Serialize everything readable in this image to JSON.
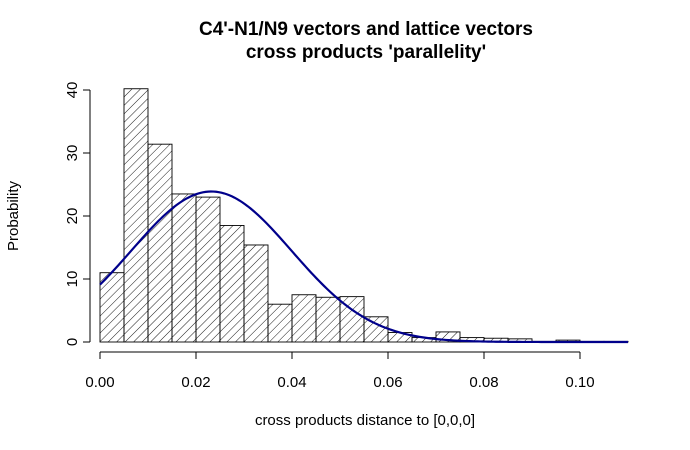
{
  "chart_data": {
    "type": "bar",
    "title_line1": "C4'-N1/N9 vectors and lattice vectors",
    "title_line2": "cross products 'parallelity'",
    "xlabel": "cross products distance to [0,0,0]",
    "ylabel": "Probability",
    "xlim": [
      0,
      0.11
    ],
    "ylim": [
      0,
      40
    ],
    "x_ticks": [
      "0.00",
      "0.02",
      "0.04",
      "0.06",
      "0.08",
      "0.10"
    ],
    "y_ticks": [
      "0",
      "10",
      "20",
      "30",
      "40"
    ],
    "bin_width": 0.005,
    "bins": [
      {
        "x0": 0.0,
        "x1": 0.005,
        "value": 11.0
      },
      {
        "x0": 0.005,
        "x1": 0.01,
        "value": 40.2
      },
      {
        "x0": 0.01,
        "x1": 0.015,
        "value": 31.4
      },
      {
        "x0": 0.015,
        "x1": 0.02,
        "value": 23.5
      },
      {
        "x0": 0.02,
        "x1": 0.025,
        "value": 23.0
      },
      {
        "x0": 0.025,
        "x1": 0.03,
        "value": 18.5
      },
      {
        "x0": 0.03,
        "x1": 0.035,
        "value": 15.4
      },
      {
        "x0": 0.035,
        "x1": 0.04,
        "value": 6.0
      },
      {
        "x0": 0.04,
        "x1": 0.045,
        "value": 7.5
      },
      {
        "x0": 0.045,
        "x1": 0.05,
        "value": 7.1
      },
      {
        "x0": 0.05,
        "x1": 0.055,
        "value": 7.2
      },
      {
        "x0": 0.055,
        "x1": 0.06,
        "value": 4.0
      },
      {
        "x0": 0.06,
        "x1": 0.065,
        "value": 1.5
      },
      {
        "x0": 0.065,
        "x1": 0.07,
        "value": 0.7
      },
      {
        "x0": 0.07,
        "x1": 0.075,
        "value": 1.6
      },
      {
        "x0": 0.075,
        "x1": 0.08,
        "value": 0.7
      },
      {
        "x0": 0.08,
        "x1": 0.085,
        "value": 0.6
      },
      {
        "x0": 0.085,
        "x1": 0.09,
        "value": 0.5
      },
      {
        "x0": 0.09,
        "x1": 0.095,
        "value": 0.1
      },
      {
        "x0": 0.095,
        "x1": 0.1,
        "value": 0.3
      },
      {
        "x0": 0.1,
        "x1": 0.105,
        "value": 0.1
      },
      {
        "x0": 0.105,
        "x1": 0.11,
        "value": 0.1
      }
    ],
    "curve": {
      "type": "normal-density",
      "mean": 0.0232,
      "sd": 0.0167,
      "x_range": [
        0.0,
        0.11
      ],
      "color": "#00008b"
    },
    "bar_fill": "hatched",
    "bar_stroke": "#000000",
    "grid": false,
    "legend": "none"
  }
}
